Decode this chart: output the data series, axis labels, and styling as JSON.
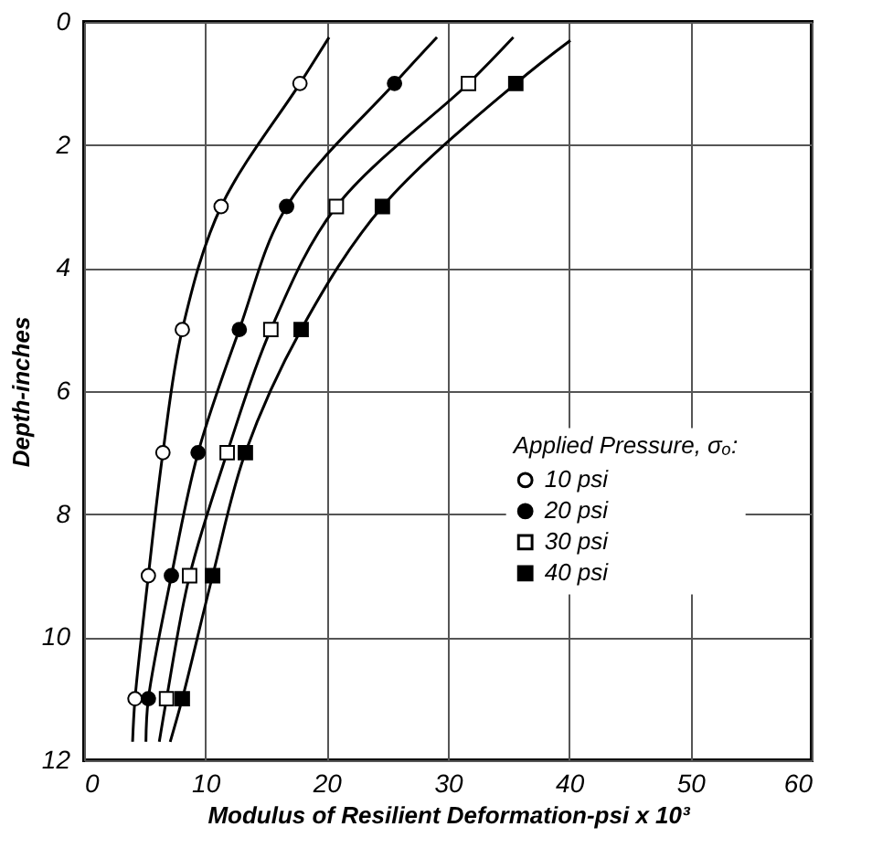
{
  "chart_data": {
    "type": "scatter",
    "xlabel": "Modulus of Resilient Deformation-psi x 10³",
    "ylabel": "Depth-inches",
    "legend_title": "Applied Pressure, σₒ:",
    "xlim": [
      0,
      60
    ],
    "xticks": [
      0,
      10,
      20,
      30,
      40,
      50,
      60
    ],
    "ylim": [
      12,
      0
    ],
    "yticks": [
      0,
      2,
      4,
      6,
      8,
      10,
      12
    ],
    "grid": true,
    "legend": "right",
    "series": [
      {
        "name": "10 psi",
        "color": "#ffffff",
        "marker": "circle",
        "x": [
          17.8,
          11.3,
          8.1,
          6.5,
          5.3,
          4.2
        ],
        "values": [
          1,
          3,
          5,
          7,
          9,
          11
        ]
      },
      {
        "name": "20 psi",
        "color": "#000000",
        "marker": "circle",
        "x": [
          25.6,
          16.7,
          12.8,
          9.4,
          7.2,
          5.3
        ],
        "values": [
          1,
          3,
          5,
          7,
          9,
          11
        ]
      },
      {
        "name": "30 psi",
        "color": "#ffffff",
        "marker": "square",
        "x": [
          31.7,
          20.8,
          15.4,
          11.8,
          8.7,
          6.8
        ],
        "values": [
          1,
          3,
          5,
          7,
          9,
          11
        ]
      },
      {
        "name": "40 psi",
        "color": "#000000",
        "marker": "square",
        "x": [
          35.6,
          24.6,
          17.9,
          13.3,
          10.6,
          8.1
        ],
        "values": [
          1,
          3,
          5,
          7,
          9,
          11
        ]
      },
      {
        "type": "line",
        "color": "#000000",
        "x": [
          20.2,
          17.8,
          11.3,
          8.1,
          6.5,
          5.3,
          4.2,
          4.0
        ],
        "values": [
          0.25,
          1,
          3,
          5,
          7,
          9,
          11,
          11.7
        ]
      },
      {
        "type": "line",
        "color": "#000000",
        "x": [
          29.1,
          25.6,
          16.7,
          12.8,
          9.4,
          7.2,
          5.3,
          5.1
        ],
        "values": [
          0.25,
          1,
          3,
          5,
          7,
          9,
          11,
          11.7
        ]
      },
      {
        "type": "line",
        "color": "#000000",
        "x": [
          35.4,
          31.7,
          20.8,
          15.4,
          11.8,
          8.7,
          6.8,
          6.2
        ],
        "values": [
          0.25,
          1,
          3,
          5,
          7,
          9,
          11,
          11.7
        ]
      },
      {
        "type": "line",
        "color": "#000000",
        "x": [
          40.1,
          35.6,
          24.6,
          17.9,
          13.3,
          10.6,
          8.1,
          7.1
        ],
        "values": [
          0.3,
          1,
          3,
          5,
          7,
          9,
          11,
          11.7
        ]
      }
    ]
  }
}
